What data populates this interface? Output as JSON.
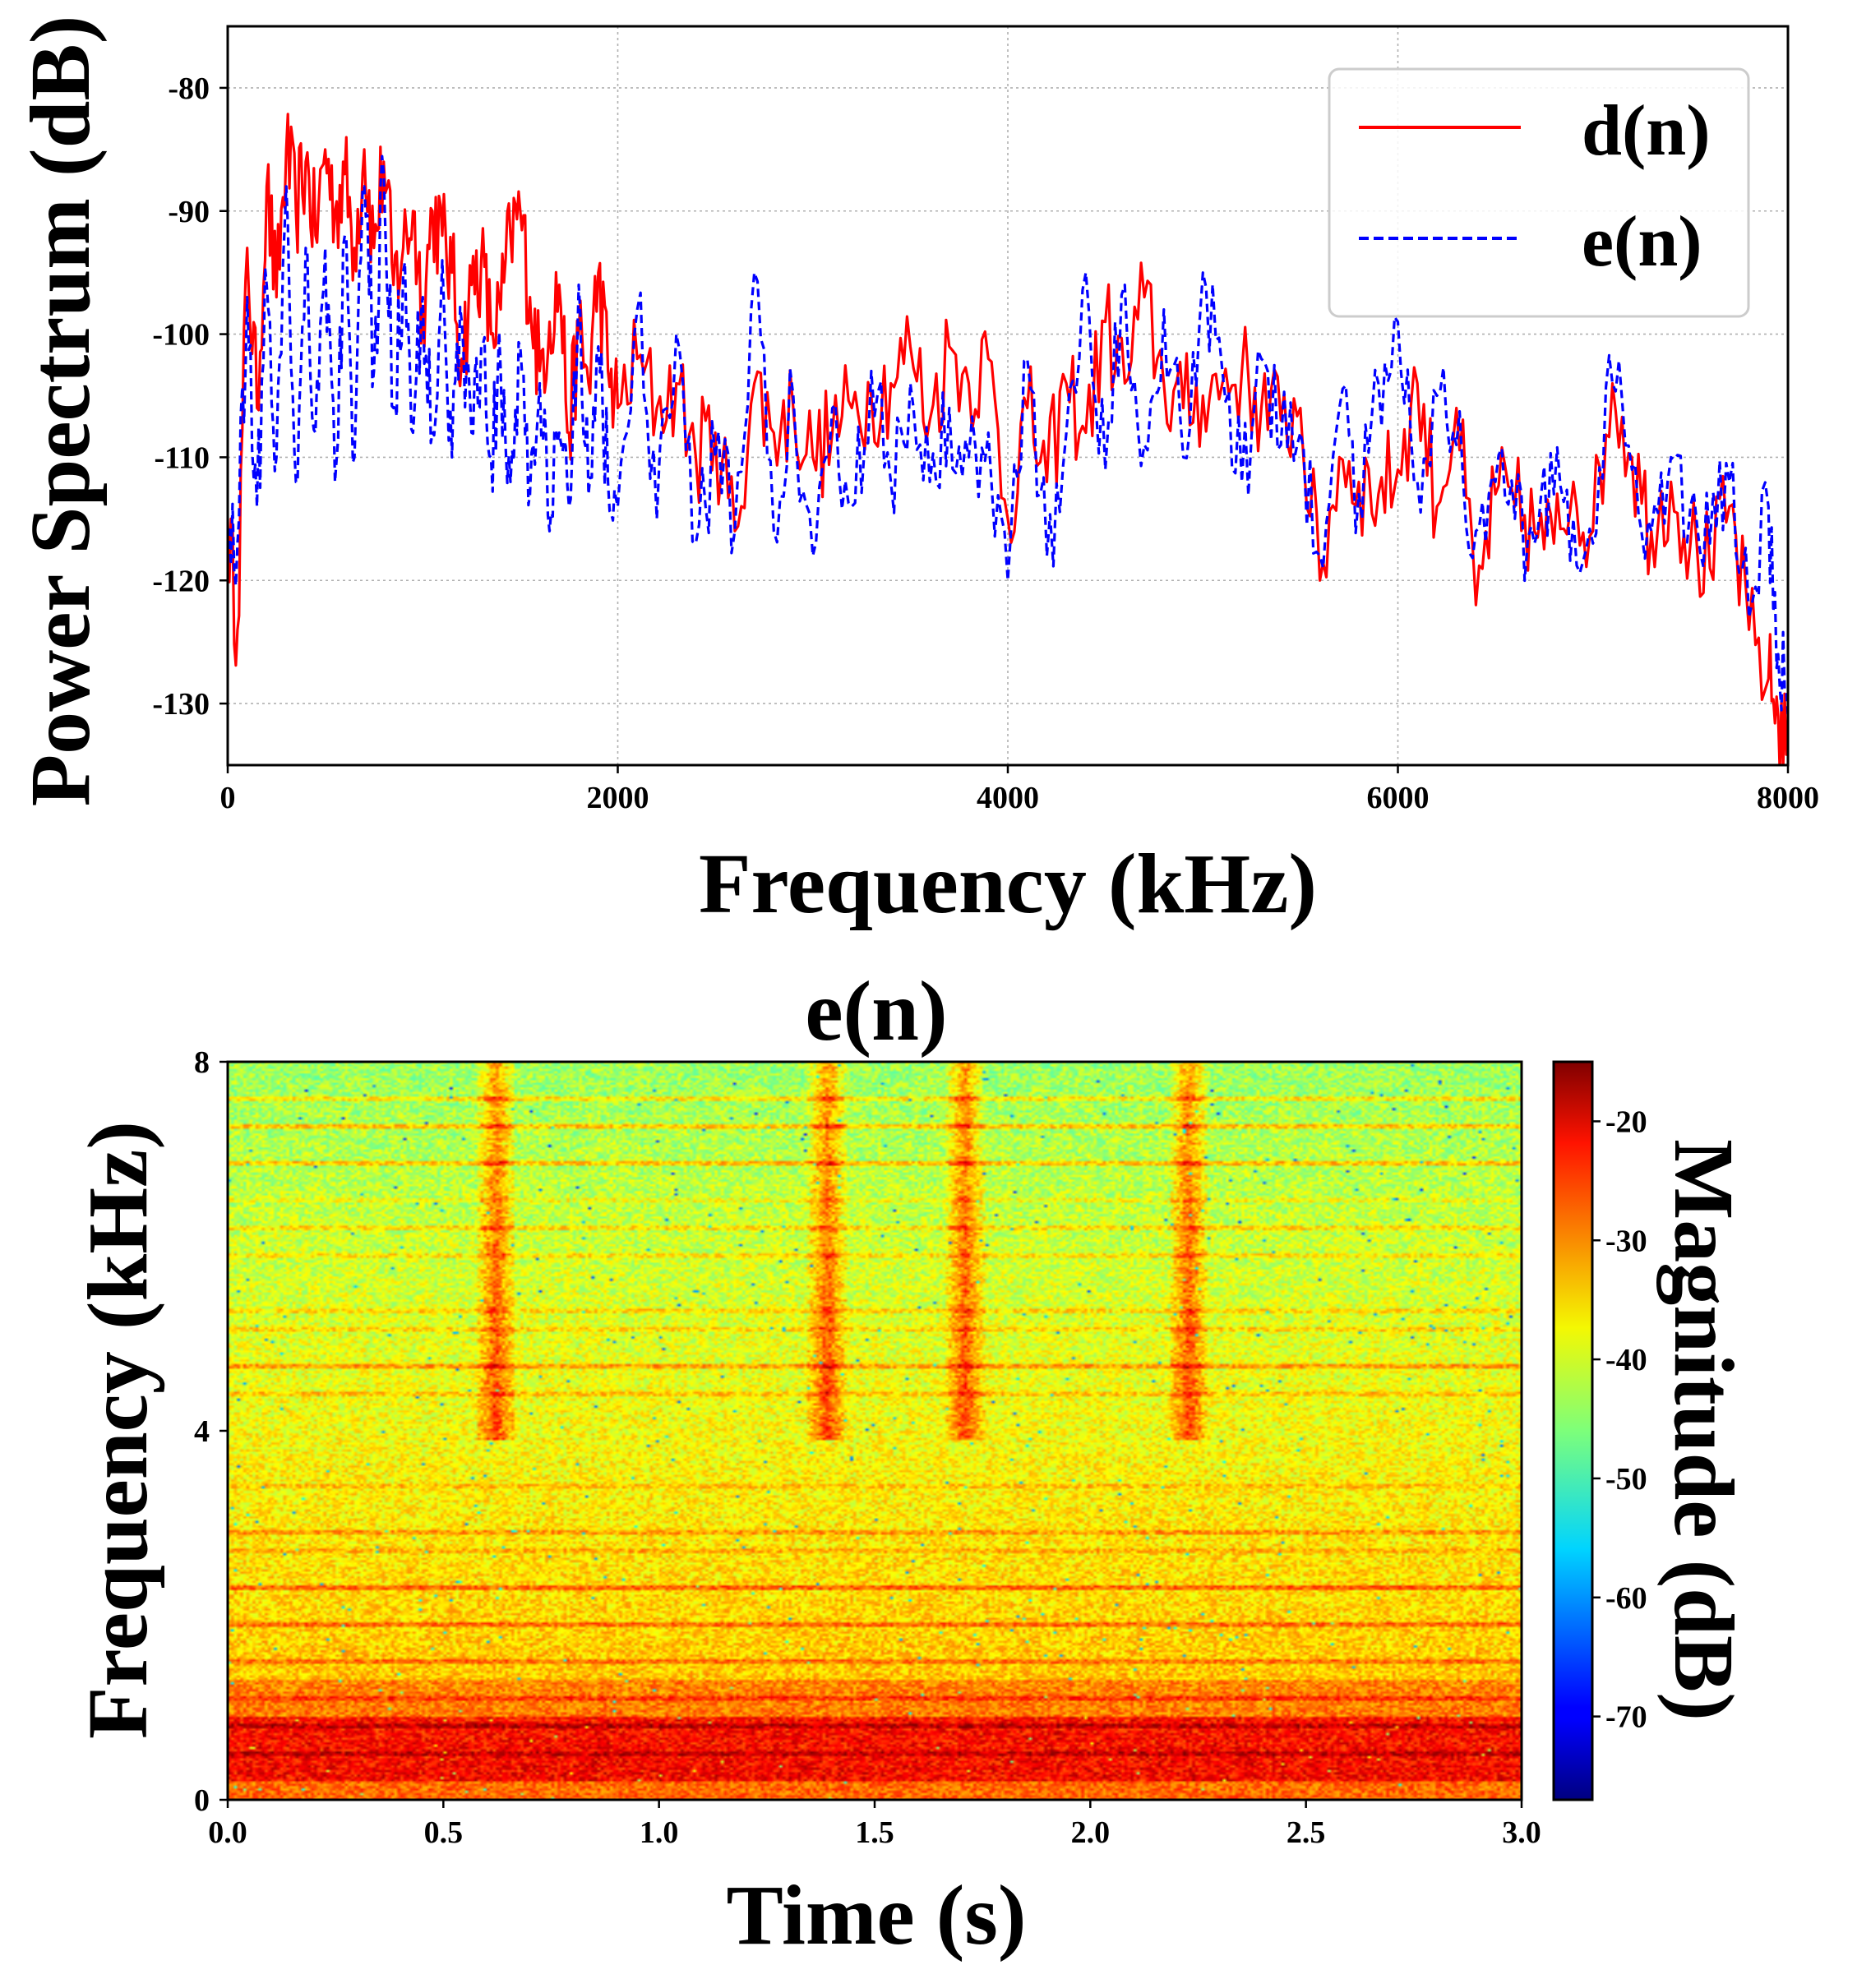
{
  "chart_data": [
    {
      "type": "line",
      "title": "",
      "xlabel": "Frequency (kHz)",
      "ylabel": "Power Spectrum (dB)",
      "xlim": [
        0,
        8000
      ],
      "ylim": [
        -135,
        -75
      ],
      "xticks": [
        0,
        2000,
        4000,
        6000,
        8000
      ],
      "xtick_labels": [
        "0",
        "2000",
        "4000",
        "6000",
        "8000"
      ],
      "yticks": [
        -130,
        -120,
        -110,
        -100,
        -90,
        -80
      ],
      "ytick_labels": [
        "-130",
        "-120",
        "-110",
        "-100",
        "-90",
        "-80"
      ],
      "grid": true,
      "legend_position": "top-right",
      "series": [
        {
          "name": "d(n)",
          "color": "#ff0000",
          "style": "solid",
          "x": [
            0,
            50,
            100,
            150,
            200,
            250,
            300,
            350,
            400,
            450,
            500,
            550,
            600,
            650,
            700,
            750,
            800,
            850,
            900,
            950,
            1000,
            1050,
            1100,
            1150,
            1200,
            1250,
            1300,
            1350,
            1400,
            1450,
            1500,
            1550,
            1600,
            1650,
            1700,
            1750,
            1800,
            1850,
            1900,
            1950,
            2000,
            2100,
            2200,
            2300,
            2400,
            2500,
            2600,
            2700,
            2800,
            2900,
            3000,
            3100,
            3200,
            3300,
            3400,
            3500,
            3600,
            3700,
            3800,
            3900,
            4000,
            4100,
            4200,
            4300,
            4400,
            4500,
            4600,
            4700,
            4800,
            4900,
            5000,
            5100,
            5200,
            5300,
            5400,
            5500,
            5600,
            5700,
            5800,
            5900,
            6000,
            6100,
            6200,
            6300,
            6400,
            6500,
            6600,
            6700,
            6800,
            6900,
            7000,
            7100,
            7200,
            7300,
            7400,
            7500,
            7600,
            7700,
            7800,
            7900,
            7950,
            8000
          ],
          "values": [
            -115,
            -124,
            -93,
            -106,
            -88,
            -97,
            -85,
            -90,
            -86,
            -92,
            -85,
            -90,
            -87,
            -93,
            -85,
            -93,
            -86,
            -96,
            -93,
            -90,
            -98,
            -90,
            -92,
            -95,
            -102,
            -96,
            -94,
            -100,
            -98,
            -92,
            -90,
            -97,
            -103,
            -99,
            -96,
            -108,
            -100,
            -104,
            -95,
            -103,
            -106,
            -102,
            -106,
            -104,
            -110,
            -108,
            -116,
            -104,
            -108,
            -106,
            -110,
            -108,
            -106,
            -105,
            -104,
            -101,
            -107,
            -101,
            -104,
            -102,
            -115,
            -106,
            -112,
            -104,
            -108,
            -99,
            -104,
            -97,
            -104,
            -106,
            -105,
            -104,
            -103,
            -106,
            -107,
            -106,
            -120,
            -110,
            -112,
            -113,
            -111,
            -104,
            -114,
            -106,
            -122,
            -113,
            -114,
            -116,
            -117,
            -112,
            -116,
            -104,
            -110,
            -116,
            -112,
            -117,
            -119,
            -114,
            -124,
            -128,
            -131,
            -134
          ]
        },
        {
          "name": "e(n)",
          "color": "#0000ff",
          "style": "dashed",
          "x": [
            0,
            50,
            100,
            150,
            200,
            250,
            300,
            350,
            400,
            450,
            500,
            550,
            600,
            650,
            700,
            750,
            800,
            850,
            900,
            950,
            1000,
            1050,
            1100,
            1150,
            1200,
            1250,
            1300,
            1350,
            1400,
            1450,
            1500,
            1550,
            1600,
            1650,
            1700,
            1750,
            1800,
            1850,
            1900,
            1950,
            2000,
            2100,
            2200,
            2300,
            2400,
            2500,
            2600,
            2700,
            2800,
            2900,
            3000,
            3100,
            3200,
            3300,
            3400,
            3500,
            3600,
            3700,
            3800,
            3900,
            4000,
            4100,
            4200,
            4300,
            4400,
            4500,
            4600,
            4700,
            4800,
            4900,
            5000,
            5100,
            5200,
            5300,
            5400,
            5500,
            5600,
            5700,
            5800,
            5900,
            6000,
            6100,
            6200,
            6300,
            6400,
            6500,
            6600,
            6700,
            6800,
            6900,
            7000,
            7100,
            7200,
            7300,
            7400,
            7500,
            7600,
            7700,
            7800,
            7900,
            7950,
            8000
          ],
          "values": [
            -116,
            -117,
            -97,
            -114,
            -96,
            -110,
            -88,
            -112,
            -93,
            -108,
            -93,
            -112,
            -92,
            -110,
            -88,
            -103,
            -87,
            -106,
            -95,
            -108,
            -97,
            -108,
            -94,
            -110,
            -99,
            -108,
            -101,
            -110,
            -103,
            -112,
            -101,
            -113,
            -104,
            -116,
            -108,
            -114,
            -96,
            -113,
            -101,
            -112,
            -114,
            -98,
            -115,
            -100,
            -117,
            -110,
            -116,
            -95,
            -116,
            -105,
            -118,
            -106,
            -114,
            -103,
            -112,
            -104,
            -112,
            -106,
            -110,
            -108,
            -120,
            -102,
            -118,
            -108,
            -95,
            -111,
            -96,
            -109,
            -98,
            -110,
            -95,
            -103,
            -112,
            -102,
            -109,
            -108,
            -118,
            -106,
            -113,
            -104,
            -99,
            -112,
            -105,
            -109,
            -116,
            -112,
            -115,
            -117,
            -113,
            -115,
            -117,
            -104,
            -111,
            -116,
            -110,
            -114,
            -117,
            -112,
            -123,
            -114,
            -126,
            -131
          ]
        }
      ]
    },
    {
      "type": "heatmap",
      "title": "e(n)",
      "xlabel": "Time (s)",
      "ylabel": "Frequency (kHz)",
      "xlim": [
        0,
        3
      ],
      "ylim": [
        0,
        8
      ],
      "xticks": [
        0.0,
        0.5,
        1.0,
        1.5,
        2.0,
        2.5,
        3.0
      ],
      "xtick_labels": [
        "0.0",
        "0.5",
        "1.0",
        "1.5",
        "2.0",
        "2.5",
        "3.0"
      ],
      "yticks": [
        0,
        4,
        8
      ],
      "ytick_labels": [
        "0",
        "4",
        "8"
      ],
      "colormap": "jet",
      "colorbar": {
        "label": "Magnitude (dB)",
        "range": [
          -77,
          -15
        ],
        "ticks": [
          -20,
          -30,
          -40,
          -50,
          -60,
          -70
        ],
        "tick_labels": [
          "-20",
          "-30",
          "-40",
          "-50",
          "-60",
          "-70"
        ]
      },
      "vertical_bursts_s": [
        0.62,
        1.39,
        1.71,
        2.23
      ],
      "low_freq_band_khz": [
        0.2,
        0.9
      ],
      "harmonic_lines_khz": [
        0.5,
        0.8,
        1.1,
        1.5,
        1.9,
        2.3,
        2.7,
        2.9,
        3.4,
        4.4,
        4.7,
        5.1,
        5.3,
        5.9,
        6.2,
        6.5,
        6.9,
        7.3,
        7.6
      ]
    }
  ]
}
